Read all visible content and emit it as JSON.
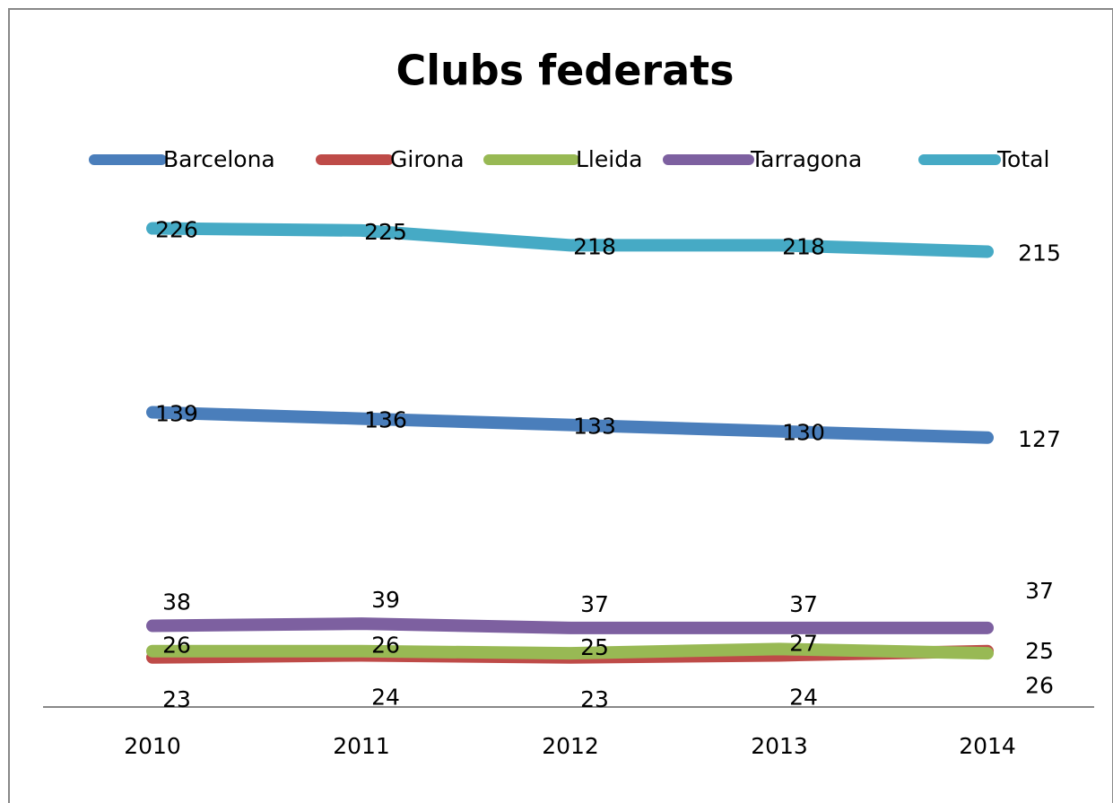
{
  "chart_data": {
    "type": "line",
    "title": "Clubs federats",
    "categories": [
      "2010",
      "2011",
      "2012",
      "2013",
      "2014"
    ],
    "series": [
      {
        "name": "Barcelona",
        "color": "#4a7ebb",
        "values": [
          139,
          136,
          133,
          130,
          127
        ]
      },
      {
        "name": "Girona",
        "color": "#be4b48",
        "values": [
          23,
          24,
          23,
          24,
          26
        ]
      },
      {
        "name": "Lleida",
        "color": "#98b954",
        "values": [
          26,
          26,
          25,
          27,
          25
        ]
      },
      {
        "name": "Tarragona",
        "color": "#7d60a0",
        "values": [
          38,
          39,
          37,
          37,
          37
        ]
      },
      {
        "name": "Total",
        "color": "#46aac5",
        "values": [
          226,
          225,
          218,
          218,
          215
        ]
      }
    ],
    "ylim": [
      0,
      250
    ],
    "legend": "top"
  }
}
